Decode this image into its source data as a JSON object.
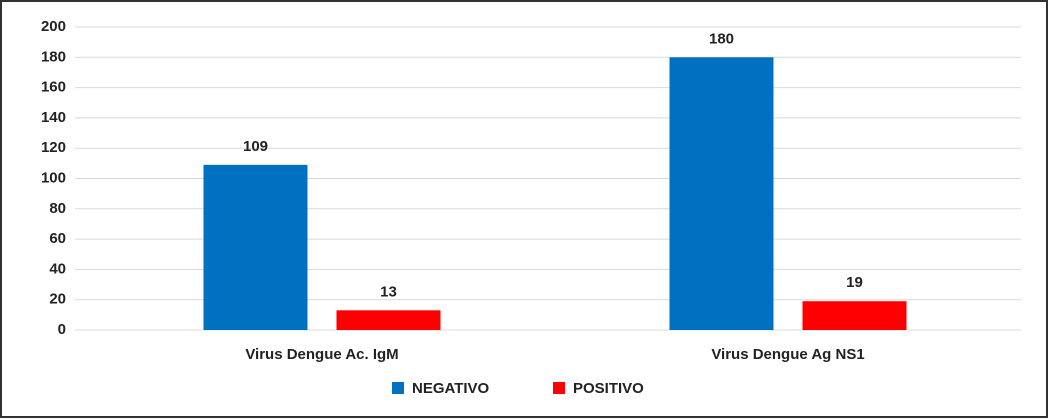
{
  "chart_data": {
    "type": "bar",
    "categories": [
      "Virus Dengue Ac. IgM",
      "Virus Dengue Ag NS1"
    ],
    "series": [
      {
        "name": "NEGATIVO",
        "color": "#0070c0",
        "values": [
          109,
          180
        ]
      },
      {
        "name": "POSITIVO",
        "color": "#ff0000",
        "values": [
          13,
          19
        ]
      }
    ],
    "ylim": [
      0,
      200
    ],
    "yticks": [
      0,
      20,
      40,
      60,
      80,
      100,
      120,
      140,
      160,
      180,
      200
    ],
    "grid": true,
    "legend": "bottom"
  }
}
